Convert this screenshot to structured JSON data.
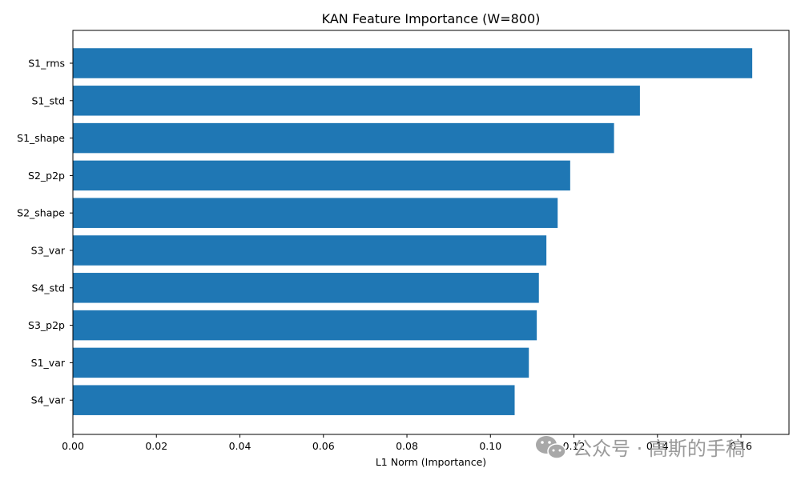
{
  "chart_data": {
    "type": "bar",
    "orientation": "horizontal",
    "title": "KAN Feature Importance (W=800)",
    "xlabel": "L1 Norm (Importance)",
    "ylabel": "",
    "xlim": [
      0,
      0.1715
    ],
    "xticks": [
      0.0,
      0.02,
      0.04,
      0.06,
      0.08,
      0.1,
      0.12,
      0.14,
      0.16
    ],
    "xtick_labels": [
      "0.00",
      "0.02",
      "0.04",
      "0.06",
      "0.08",
      "0.10",
      "0.12",
      "0.14",
      "0.16"
    ],
    "categories": [
      "S1_rms",
      "S1_std",
      "S1_shape",
      "S2_p2p",
      "S2_shape",
      "S3_var",
      "S4_std",
      "S3_p2p",
      "S1_var",
      "S4_var"
    ],
    "values": [
      0.1627,
      0.1358,
      0.1296,
      0.1191,
      0.1161,
      0.1134,
      0.1116,
      0.1111,
      0.1092,
      0.1058
    ],
    "bar_color": "#1f77b4",
    "grid": false,
    "legend": "none"
  },
  "watermark": {
    "icon": "wechat-icon",
    "text": "公众号 · 高斯的手稿"
  }
}
